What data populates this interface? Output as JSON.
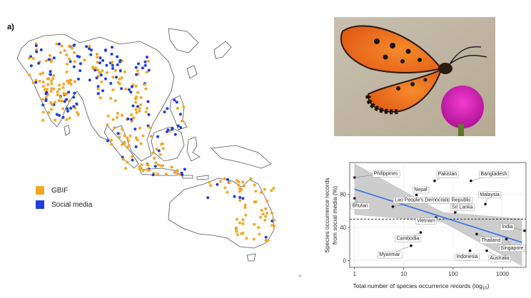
{
  "figure": {
    "panel_label": "a)",
    "legend": [
      {
        "label": "GBIF",
        "color": "#f5a623"
      },
      {
        "label": "Social media",
        "color": "#1f3fdc"
      }
    ],
    "corner_mark": "≈"
  },
  "chart_data": {
    "type": "scatter",
    "title": "",
    "xlabel": "Total number of species occurrence records (log",
    "xlabel_sub": "10",
    "xlabel_close": ")",
    "ylabel_line1": "Species occurrence records",
    "ylabel_line2": "from social media (%)",
    "x_scale": "log10",
    "xlim": [
      0.8,
      3000
    ],
    "ylim": [
      -8,
      118
    ],
    "x_ticks": [
      1,
      10,
      100,
      1000
    ],
    "x_tick_labels": [
      "1",
      "10",
      "100",
      "1000"
    ],
    "y_ticks": [
      0,
      40,
      80
    ],
    "y_tick_labels": [
      "0",
      "40",
      "80"
    ],
    "reference_line_y": 50,
    "fit_line": {
      "x": [
        1,
        2500
      ],
      "y": [
        86,
        22
      ]
    },
    "points": [
      {
        "name": "Philippines",
        "x": 1,
        "y": 100
      },
      {
        "name": "Pakistan",
        "x": 42,
        "y": 96
      },
      {
        "name": "Bangladesh",
        "x": 230,
        "y": 96
      },
      {
        "name": "Nepal",
        "x": 18,
        "y": 79
      },
      {
        "name": "Bhutan",
        "x": 1,
        "y": 75
      },
      {
        "name": "Malaysia",
        "x": 450,
        "y": 68
      },
      {
        "name": "Lao People's Democratic Republic",
        "x": 6,
        "y": 65
      },
      {
        "name": "Sri Lanka",
        "x": 110,
        "y": 58
      },
      {
        "name": "India",
        "x": 2800,
        "y": 36
      },
      {
        "name": "Vietnam",
        "x": 45,
        "y": 52
      },
      {
        "name": "Cambodia",
        "x": 22,
        "y": 34
      },
      {
        "name": "Thailand",
        "x": 300,
        "y": 32
      },
      {
        "name": "Singapore",
        "x": 1200,
        "y": 26
      },
      {
        "name": "Myanmar",
        "x": 14,
        "y": 18
      },
      {
        "name": "Indonesia",
        "x": 220,
        "y": 12
      },
      {
        "name": "Australia",
        "x": 480,
        "y": 12
      }
    ]
  }
}
